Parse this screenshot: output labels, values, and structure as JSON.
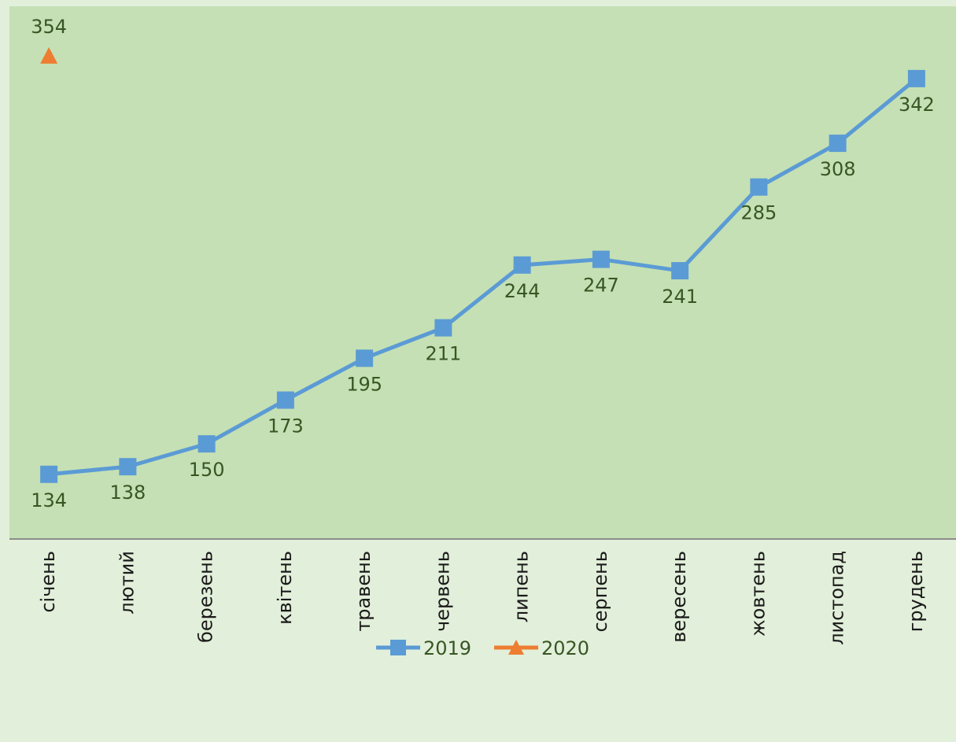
{
  "chart_data": {
    "type": "line",
    "categories": [
      "січень",
      "лютий",
      "березень",
      "квітень",
      "травень",
      "червень",
      "липень",
      "серпень",
      "вересень",
      "жовтень",
      "листопад",
      "грудень"
    ],
    "series": [
      {
        "name": "2019",
        "color": "#5b9bd5",
        "marker": "square",
        "label_position": "below",
        "values": [
          134,
          138,
          150,
          173,
          195,
          211,
          244,
          247,
          241,
          285,
          308,
          342
        ]
      },
      {
        "name": "2020",
        "color": "#ed7d31",
        "marker": "triangle",
        "label_position": "above",
        "values": [
          354,
          null,
          null,
          null,
          null,
          null,
          null,
          null,
          null,
          null,
          null,
          null
        ]
      }
    ],
    "ylim": [
      100,
      380
    ],
    "legend": "bottom"
  }
}
